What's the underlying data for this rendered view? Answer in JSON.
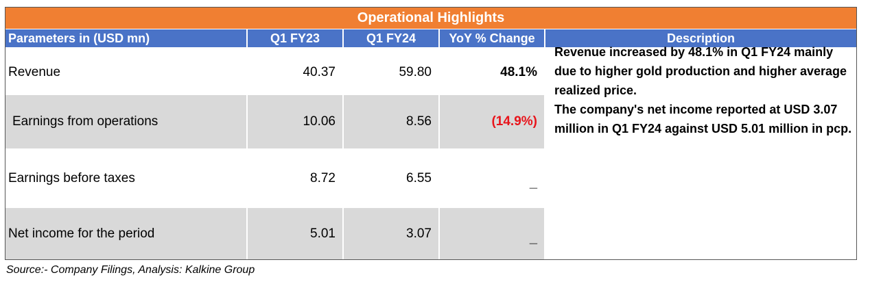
{
  "title": "Operational Highlights",
  "headers": {
    "parameters": "Parameters in (USD mn)",
    "q1_fy23": "Q1 FY23",
    "q1_fy24": "Q1 FY24",
    "yoy": "YoY % Change",
    "description": "Description"
  },
  "rows": [
    {
      "label": "Revenue",
      "q1_fy23": "40.37",
      "q1_fy24": "59.80",
      "yoy": "48.1%"
    },
    {
      "label": "Earnings from operations",
      "q1_fy23": "10.06",
      "q1_fy24": "8.56",
      "yoy": "(14.9%)"
    },
    {
      "label": "Earnings before taxes",
      "q1_fy23": "8.72",
      "q1_fy24": "6.55",
      "yoy": "_"
    },
    {
      "label": "Net income for the period",
      "q1_fy23": "5.01",
      "q1_fy24": "3.07",
      "yoy": "_"
    }
  ],
  "description": {
    "revenue_note": "Revenue increased  by 48.1% in  Q1 FY24 mainly due to higher gold production and higher average  realized price.",
    "income_note": "The company's  net income reported at USD 3.07 million in  Q1 FY24  against  USD 5.01 million in pcp."
  },
  "source": "Source:- Company Filings, Analysis: Kalkine Group",
  "colors": {
    "banner": "#f07f32",
    "header": "#4a73c7",
    "row_shade": "#d9d9d9",
    "negative": "#e8141b"
  }
}
